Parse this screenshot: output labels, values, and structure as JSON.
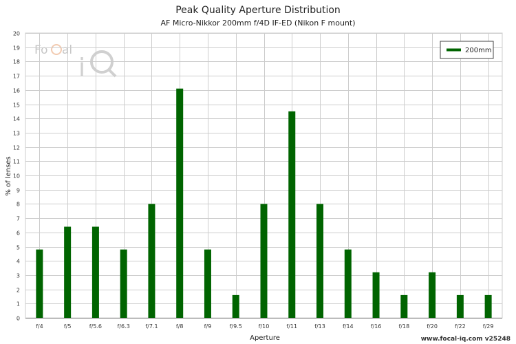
{
  "header": {
    "title": "Peak Quality Aperture Distribution",
    "subtitle": "AF Micro-Nikkor 200mm f/4D IF-ED (Nikon F mount)"
  },
  "logo": {
    "text_a": "Fo",
    "text_b": "C",
    "text_c": "al",
    "text_i": "i",
    "text_q": "Q"
  },
  "footer": {
    "text": "www.focal-iq.com  v25248"
  },
  "colors": {
    "bar": "#006400",
    "grid": "#cccccc",
    "axis": "#888888"
  },
  "chart_data": {
    "type": "bar",
    "title": "Peak Quality Aperture Distribution",
    "subtitle": "AF Micro-Nikkor 200mm f/4D IF-ED (Nikon F mount)",
    "xlabel": "Aperture",
    "ylabel": "% of lenses",
    "ylim": [
      0,
      20
    ],
    "yticks": [
      0,
      1,
      2,
      3,
      4,
      5,
      6,
      7,
      8,
      9,
      10,
      11,
      12,
      13,
      14,
      15,
      16,
      17,
      18,
      19,
      20
    ],
    "grid": true,
    "legend_position": "top-right",
    "categories": [
      "f/4",
      "f/5",
      "f/5.6",
      "f/6.3",
      "f/7.1",
      "f/8",
      "f/9",
      "f/9.5",
      "f/10",
      "f/11",
      "f/13",
      "f/14",
      "f/16",
      "f/18",
      "f/20",
      "f/22",
      "f/29"
    ],
    "series": [
      {
        "name": "200mm",
        "color": "#006400",
        "values": [
          4.8,
          6.4,
          6.4,
          4.8,
          8.0,
          16.1,
          4.8,
          1.6,
          8.0,
          14.5,
          8.0,
          4.8,
          3.2,
          1.6,
          3.2,
          1.6,
          1.6
        ]
      }
    ]
  }
}
